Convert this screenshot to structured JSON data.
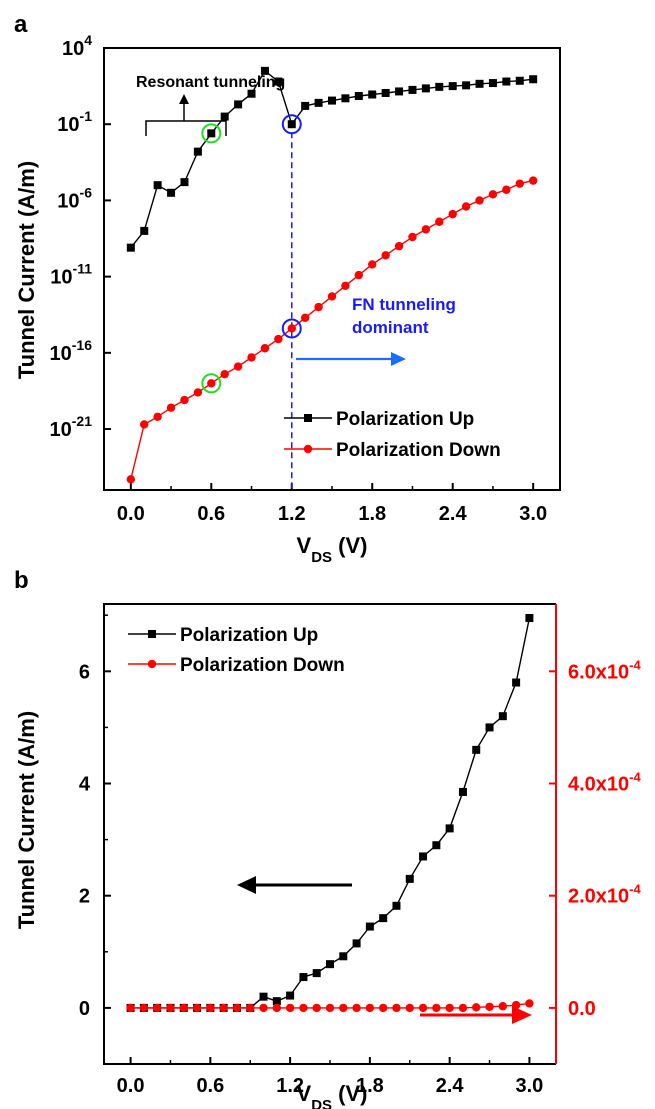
{
  "chart_data": [
    {
      "panel_label": "a",
      "type": "line",
      "y_scale": "log",
      "xlabel": "V",
      "xlabel_sub": "DS",
      "xlabel_unit": " (V)",
      "ylabel": "Tunnel Current (A/m)",
      "xlim": [
        -0.2,
        3.2
      ],
      "ylim_exp": [
        -25,
        4
      ],
      "x_ticks": [
        "0.0",
        "0.6",
        "1.2",
        "1.8",
        "2.4",
        "3.0"
      ],
      "x_tick_values": [
        0.0,
        0.6,
        1.2,
        1.8,
        2.4,
        3.0
      ],
      "y_ticks": [
        {
          "base": "10",
          "exp": "4",
          "value": 4
        },
        {
          "base": "10",
          "exp": "-1",
          "value": -1
        },
        {
          "base": "10",
          "exp": "-6",
          "value": -6
        },
        {
          "base": "10",
          "exp": "-11",
          "value": -11
        },
        {
          "base": "10",
          "exp": "-16",
          "value": -16
        },
        {
          "base": "10",
          "exp": "-21",
          "value": -21
        }
      ],
      "series": [
        {
          "name": "Polarization Up",
          "color": "#000000",
          "marker": "square",
          "x": [
            0.0,
            0.1,
            0.2,
            0.3,
            0.4,
            0.5,
            0.6,
            0.7,
            0.8,
            0.9,
            1.0,
            1.1,
            1.2,
            1.3,
            1.4,
            1.5,
            1.6,
            1.7,
            1.8,
            1.9,
            2.0,
            2.1,
            2.2,
            2.3,
            2.4,
            2.5,
            2.6,
            2.7,
            2.8,
            2.9,
            3.0
          ],
          "log10_y": [
            -9.1,
            -8.0,
            -5.0,
            -5.5,
            -4.8,
            -2.8,
            -1.6,
            -0.5,
            0.3,
            1.0,
            2.5,
            1.8,
            -1.0,
            0.2,
            0.4,
            0.55,
            0.7,
            0.85,
            0.95,
            1.05,
            1.15,
            1.25,
            1.35,
            1.45,
            1.5,
            1.55,
            1.65,
            1.7,
            1.8,
            1.85,
            1.95
          ]
        },
        {
          "name": "Polarization Down",
          "color": "#ff0000",
          "marker": "circle",
          "x": [
            0.0,
            0.1,
            0.2,
            0.3,
            0.4,
            0.5,
            0.6,
            0.7,
            0.8,
            0.9,
            1.0,
            1.1,
            1.2,
            1.3,
            1.4,
            1.5,
            1.6,
            1.7,
            1.8,
            1.9,
            2.0,
            2.1,
            2.2,
            2.3,
            2.4,
            2.5,
            2.6,
            2.7,
            2.8,
            2.9,
            3.0
          ],
          "log10_y": [
            -24.3,
            -20.7,
            -20.2,
            -19.6,
            -19.1,
            -18.6,
            -18.0,
            -17.4,
            -16.9,
            -16.3,
            -15.7,
            -15.1,
            -14.4,
            -13.7,
            -13.0,
            -12.3,
            -11.6,
            -10.9,
            -10.2,
            -9.6,
            -9.0,
            -8.4,
            -7.9,
            -7.4,
            -6.9,
            -6.4,
            -6.0,
            -5.6,
            -5.3,
            -4.9,
            -4.7
          ]
        }
      ],
      "annotations": {
        "resonant_label": "Resonant tunneling",
        "fn_label_line1": "FN tunneling",
        "fn_label_line2": "dominant",
        "vline_x": 1.2,
        "green_circles": [
          {
            "x": 0.6,
            "series": 0
          },
          {
            "x": 0.6,
            "series": 1
          }
        ],
        "blue_circles": [
          {
            "x": 1.2,
            "series": 0
          },
          {
            "x": 1.2,
            "series": 1
          }
        ]
      },
      "legend_position": "bottom-right",
      "grid": false
    },
    {
      "panel_label": "b",
      "type": "line",
      "y_scale": "linear",
      "dual_axis": true,
      "xlabel": "V",
      "xlabel_sub": "DS",
      "xlabel_unit": " (V)",
      "ylabel": "Tunnel Current (A/m)",
      "xlim": [
        -0.2,
        3.2
      ],
      "ylim": [
        -1.0,
        7.2
      ],
      "ylim_right": [
        -0.0001,
        0.00072
      ],
      "x_ticks": [
        "0.0",
        "0.6",
        "1.2",
        "1.8",
        "2.4",
        "3.0"
      ],
      "x_tick_values": [
        0.0,
        0.6,
        1.2,
        1.8,
        2.4,
        3.0
      ],
      "y_ticks": [
        "0",
        "2",
        "4",
        "6"
      ],
      "y_tick_values": [
        0,
        2,
        4,
        6
      ],
      "y_ticks_right": [
        {
          "text": "0.0",
          "exp": "",
          "value": 0.0
        },
        {
          "text": "2.0x10",
          "exp": "-4",
          "value": 0.0002
        },
        {
          "text": "4.0x10",
          "exp": "-4",
          "value": 0.0004
        },
        {
          "text": "6.0x10",
          "exp": "-4",
          "value": 0.0006
        }
      ],
      "series": [
        {
          "name": "Polarization Up",
          "color": "#000000",
          "marker": "square",
          "axis": "left",
          "x": [
            0.0,
            0.1,
            0.2,
            0.3,
            0.4,
            0.5,
            0.6,
            0.7,
            0.8,
            0.9,
            1.0,
            1.1,
            1.2,
            1.3,
            1.4,
            1.5,
            1.6,
            1.7,
            1.8,
            1.9,
            2.0,
            2.1,
            2.2,
            2.3,
            2.4,
            2.5,
            2.6,
            2.7,
            2.8,
            2.9,
            3.0
          ],
          "y": [
            0,
            0,
            0,
            0,
            0,
            0,
            0,
            0,
            0,
            0,
            0.2,
            0.12,
            0.22,
            0.55,
            0.62,
            0.78,
            0.92,
            1.15,
            1.45,
            1.6,
            1.82,
            2.3,
            2.7,
            2.9,
            3.2,
            3.85,
            4.6,
            5.0,
            5.2,
            5.8,
            6.95
          ]
        },
        {
          "name": "Polarization Down",
          "color": "#ff0000",
          "marker": "circle",
          "axis": "right",
          "x": [
            0.0,
            0.1,
            0.2,
            0.3,
            0.4,
            0.5,
            0.6,
            0.7,
            0.8,
            0.9,
            1.0,
            1.1,
            1.2,
            1.3,
            1.4,
            1.5,
            1.6,
            1.7,
            1.8,
            1.9,
            2.0,
            2.1,
            2.2,
            2.3,
            2.4,
            2.5,
            2.6,
            2.7,
            2.8,
            2.9,
            3.0
          ],
          "y": [
            0,
            0,
            0,
            0,
            0,
            0,
            0,
            0,
            0,
            0,
            0,
            0,
            0,
            0,
            0,
            0,
            0,
            0,
            0,
            0,
            0,
            0,
            0,
            0,
            0,
            0,
            1e-06,
            2e-06,
            3e-06,
            5e-06,
            8e-06
          ]
        }
      ],
      "legend_position": "top-left",
      "grid": false
    }
  ],
  "colors": {
    "axis": "#000000",
    "up": "#000000",
    "down": "#ff0000",
    "vline": "#1a1aff",
    "fn_arrow": "#1a6bff",
    "green_circle": "#22dd22",
    "blue_circle": "#1a1aff",
    "right_axis": "#ff0000"
  }
}
